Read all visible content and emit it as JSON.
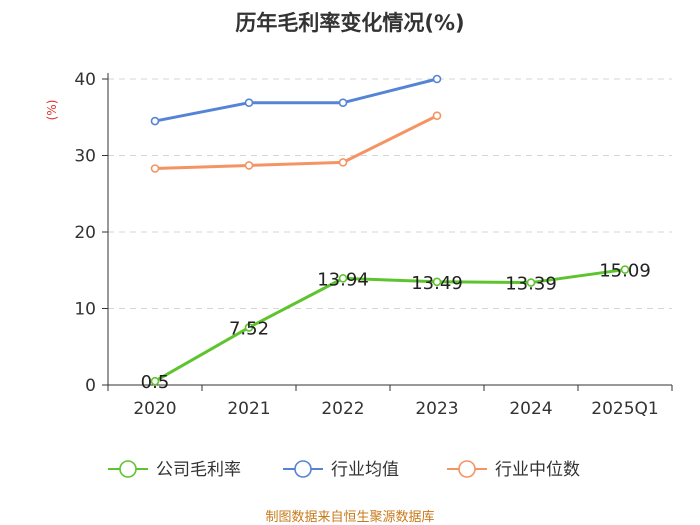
{
  "chart_data": {
    "type": "line",
    "title": "历年毛利率变化情况(%)",
    "ylabel": "(%)",
    "xlabel": "",
    "categories": [
      "2020",
      "2021",
      "2022",
      "2023",
      "2024",
      "2025Q1"
    ],
    "ylim": [
      0,
      40
    ],
    "yticks": [
      "0",
      "10",
      "20",
      "30",
      "40"
    ],
    "grid": true,
    "legend_position": "bottom",
    "series": [
      {
        "name": "公司毛利率",
        "color": "#5ec42e",
        "values": [
          0.5,
          7.52,
          13.94,
          13.49,
          13.39,
          15.09
        ],
        "data_labels": [
          "0.5",
          "7.52",
          "13.94",
          "13.49",
          "13.39",
          "15.09"
        ]
      },
      {
        "name": "行业均值",
        "color": "#5584d6",
        "values": [
          34.5,
          36.9,
          36.9,
          40.0,
          null,
          null
        ]
      },
      {
        "name": "行业中位数",
        "color": "#f59463",
        "values": [
          28.3,
          28.7,
          29.1,
          35.2,
          null,
          null
        ]
      }
    ]
  },
  "source": "制图数据来自恒生聚源数据库"
}
